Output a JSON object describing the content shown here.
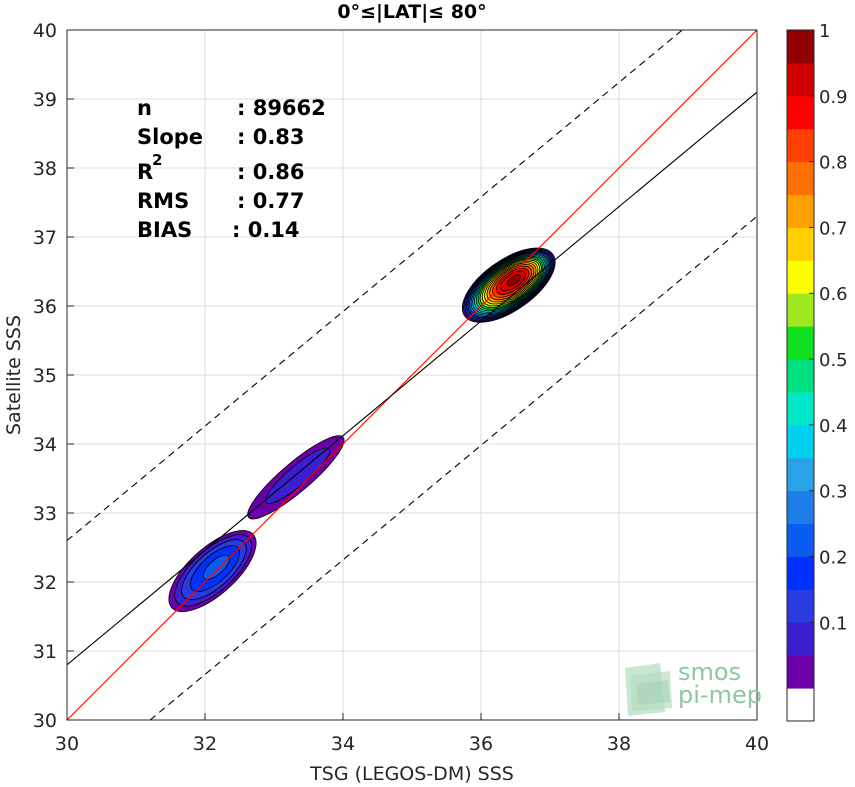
{
  "chart_data": {
    "type": "scatter",
    "title": "0°≤|LAT|≤ 80°",
    "xlabel": "TSG (LEGOS-DM) SSS",
    "ylabel": "Satellite SSS",
    "xlim": [
      30,
      40
    ],
    "ylim": [
      30,
      40
    ],
    "xticks": [
      "30",
      "32",
      "34",
      "36",
      "38",
      "40"
    ],
    "yticks": [
      "30",
      "31",
      "32",
      "33",
      "34",
      "35",
      "36",
      "37",
      "38",
      "39",
      "40"
    ],
    "grid": true,
    "stats": {
      "n_label": "n",
      "n_value": ": 89662",
      "slope_label": "Slope",
      "slope_value": ": 0.83",
      "r2_label": "R",
      "r2_sup": "2",
      "r2_value": ": 0.86",
      "rms_label": "RMS",
      "rms_value": ": 0.77",
      "bias_label": "BIAS",
      "bias_value": ": 0.14"
    },
    "lines": {
      "identity": {
        "slope": 1.0,
        "intercept": 0.0,
        "color": "#ff0000"
      },
      "fit": {
        "slope": 0.83,
        "intercept": 5.9,
        "color": "#000000"
      },
      "upper_band": {
        "slope": 0.83,
        "intercept": 7.7,
        "color": "#000000",
        "dash": true
      },
      "lower_band": {
        "slope": 0.83,
        "intercept": 4.1,
        "color": "#000000",
        "dash": true
      }
    },
    "density_clusters": [
      {
        "name": "low",
        "center": [
          32.1,
          32.15
        ],
        "spread": [
          0.55,
          0.5
        ],
        "tilt": 0.9,
        "peak": 0.25
      },
      {
        "name": "mid",
        "center": [
          33.3,
          33.5
        ],
        "spread": [
          0.7,
          0.35
        ],
        "tilt": 0.85,
        "peak": 0.12
      },
      {
        "name": "high",
        "center": [
          36.4,
          36.3
        ],
        "spread": [
          0.5,
          0.5
        ],
        "tilt": 0.7,
        "peak": 1.0
      }
    ],
    "colorbar": {
      "ticks": [
        "0.1",
        "0.2",
        "0.3",
        "0.4",
        "0.5",
        "0.6",
        "0.7",
        "0.8",
        "0.9",
        "1"
      ],
      "levels": [
        0.05,
        0.1,
        0.15,
        0.2,
        0.25,
        0.3,
        0.35,
        0.4,
        0.45,
        0.5,
        0.55,
        0.6,
        0.65,
        0.7,
        0.75,
        0.8,
        0.85,
        0.9,
        0.95,
        1.0
      ],
      "colors": [
        "#ffffff",
        "#6a00a8",
        "#3a1fd0",
        "#2a3be0",
        "#0030ff",
        "#0a5cf0",
        "#1e7de8",
        "#2aa2e8",
        "#00d0f0",
        "#00e8c8",
        "#00e080",
        "#10e020",
        "#a0e820",
        "#ffff00",
        "#ffd000",
        "#ffa000",
        "#ff7000",
        "#ff4000",
        "#ff0000",
        "#d00000",
        "#900000"
      ]
    },
    "logo": {
      "line1": "smos",
      "line2": "pi-mep"
    }
  }
}
